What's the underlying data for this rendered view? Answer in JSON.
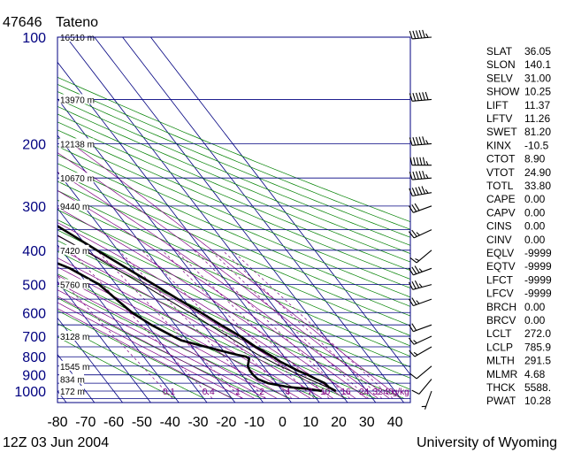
{
  "station": {
    "id": "47646",
    "name": "Tateno"
  },
  "footer": {
    "time": "12Z 03 Jun 2004",
    "source": "University of Wyoming"
  },
  "colors": {
    "isobar": "#000080",
    "dry_adiabat": "#008000",
    "moist_adiabat": "#800080",
    "mixing_ratio": "#800080",
    "isotherm": "#000080",
    "profile": "#000000"
  },
  "chart_data": {
    "type": "line",
    "title": "",
    "x_axis": {
      "range": [
        -80,
        45
      ],
      "ticks": [
        -80,
        -70,
        -60,
        -50,
        -40,
        -30,
        -20,
        -10,
        0,
        10,
        20,
        30,
        40
      ]
    },
    "y_axis": {
      "scale": "log",
      "range": [
        1050,
        100
      ],
      "ticks": [
        100,
        200,
        300,
        400,
        500,
        600,
        700,
        800,
        900,
        1000
      ]
    },
    "height_labels": [
      {
        "p": 100,
        "text": "16510 m"
      },
      {
        "p": 150,
        "text": "13970 m"
      },
      {
        "p": 200,
        "text": "12138 m"
      },
      {
        "p": 250,
        "text": "10670 m"
      },
      {
        "p": 300,
        "text": "9440 m"
      },
      {
        "p": 400,
        "text": "7420 m"
      },
      {
        "p": 500,
        "text": "5760 m"
      },
      {
        "p": 700,
        "text": "3128 m"
      },
      {
        "p": 850,
        "text": "1545 m"
      },
      {
        "p": 925,
        "text": "834 m"
      },
      {
        "p": 1000,
        "text": "172 m"
      }
    ],
    "mixing_ratio_labels": [
      "0.1",
      "0.4",
      "1",
      "2",
      "4",
      "7",
      "10",
      "16",
      "24",
      "32",
      "40",
      "g/kg"
    ],
    "series": [
      {
        "name": "",
        "role": "temperature",
        "points": [
          {
            "p": 1000,
            "t": 19.0
          },
          {
            "p": 975,
            "t": 17.5
          },
          {
            "p": 950,
            "t": 17.2
          },
          {
            "p": 925,
            "t": 15.2
          },
          {
            "p": 900,
            "t": 13.5
          },
          {
            "p": 875,
            "t": 11.0
          },
          {
            "p": 850,
            "t": 9.2
          },
          {
            "p": 825,
            "t": 7.2
          },
          {
            "p": 800,
            "t": 6.0
          },
          {
            "p": 750,
            "t": 2.5
          },
          {
            "p": 700,
            "t": 0.0
          },
          {
            "p": 650,
            "t": -3.8
          },
          {
            "p": 600,
            "t": -7.5
          },
          {
            "p": 550,
            "t": -12.0
          },
          {
            "p": 500,
            "t": -16.5
          },
          {
            "p": 400,
            "t": -27.5
          },
          {
            "p": 300,
            "t": -41.0
          },
          {
            "p": 250,
            "t": -49.5
          },
          {
            "p": 200,
            "t": -56.5
          },
          {
            "p": 190,
            "t": -55.0
          },
          {
            "p": 175,
            "t": -53.5
          },
          {
            "p": 150,
            "t": -55.5
          },
          {
            "p": 130,
            "t": -55.0
          },
          {
            "p": 120,
            "t": -58.0
          },
          {
            "p": 100,
            "t": -60.0
          }
        ]
      },
      {
        "name": "",
        "role": "dewpoint",
        "points": [
          {
            "p": 1000,
            "t": 14.0
          },
          {
            "p": 985,
            "t": 9.5
          },
          {
            "p": 975,
            "t": 3.5
          },
          {
            "p": 950,
            "t": -3.0
          },
          {
            "p": 925,
            "t": -5.5
          },
          {
            "p": 900,
            "t": -6.0
          },
          {
            "p": 875,
            "t": -6.0
          },
          {
            "p": 850,
            "t": -5.5
          },
          {
            "p": 810,
            "t": -3.0
          },
          {
            "p": 800,
            "t": -3.5
          },
          {
            "p": 790,
            "t": -6.0
          },
          {
            "p": 760,
            "t": -13.0
          },
          {
            "p": 720,
            "t": -22.0
          },
          {
            "p": 700,
            "t": -24.0
          },
          {
            "p": 650,
            "t": -28.5
          },
          {
            "p": 600,
            "t": -32.0
          },
          {
            "p": 550,
            "t": -34.0
          },
          {
            "p": 500,
            "t": -36.0
          },
          {
            "p": 450,
            "t": -42.0
          },
          {
            "p": 400,
            "t": -53.0
          },
          {
            "p": 350,
            "t": -58.0
          },
          {
            "p": 300,
            "t": -66.0
          }
        ]
      },
      {
        "name": "",
        "role": "parcel",
        "points": [
          {
            "p": 1000,
            "t": 19.0
          },
          {
            "p": 900,
            "t": 10.5
          },
          {
            "p": 850,
            "t": 6.0
          },
          {
            "p": 786,
            "t": 1.0
          },
          {
            "p": 700,
            "t": -4.5
          },
          {
            "p": 600,
            "t": -11.5
          },
          {
            "p": 500,
            "t": -20.5
          },
          {
            "p": 400,
            "t": -32.0
          },
          {
            "p": 300,
            "t": -48.0
          },
          {
            "p": 250,
            "t": -58.0
          },
          {
            "p": 200,
            "t": -70.0
          }
        ]
      }
    ],
    "wind_barbs": [
      {
        "p": 100,
        "dir": 265,
        "kt": 55
      },
      {
        "p": 150,
        "dir": 265,
        "kt": 60
      },
      {
        "p": 200,
        "dir": 265,
        "kt": 55
      },
      {
        "p": 230,
        "dir": 270,
        "kt": 55
      },
      {
        "p": 250,
        "dir": 265,
        "kt": 55
      },
      {
        "p": 275,
        "dir": 260,
        "kt": 55
      },
      {
        "p": 300,
        "dir": 250,
        "kt": 30
      },
      {
        "p": 350,
        "dir": 245,
        "kt": 25
      },
      {
        "p": 400,
        "dir": 230,
        "kt": 15
      },
      {
        "p": 450,
        "dir": 250,
        "kt": 35
      },
      {
        "p": 500,
        "dir": 255,
        "kt": 35
      },
      {
        "p": 550,
        "dir": 250,
        "kt": 25
      },
      {
        "p": 650,
        "dir": 250,
        "kt": 20
      },
      {
        "p": 700,
        "dir": 245,
        "kt": 15
      },
      {
        "p": 750,
        "dir": 240,
        "kt": 15
      },
      {
        "p": 850,
        "dir": 230,
        "kt": 10
      },
      {
        "p": 925,
        "dir": 220,
        "kt": 10
      },
      {
        "p": 1000,
        "dir": 200,
        "kt": 5
      }
    ]
  },
  "indices": [
    {
      "label": "SLAT",
      "value": "36.05"
    },
    {
      "label": "SLON",
      "value": "140.1"
    },
    {
      "label": "SELV",
      "value": "31.00"
    },
    {
      "label": "SHOW",
      "value": "10.25"
    },
    {
      "label": "LIFT",
      "value": "11.37"
    },
    {
      "label": "LFTV",
      "value": "11.26"
    },
    {
      "label": "SWET",
      "value": "81.20"
    },
    {
      "label": "KINX",
      "value": "-10.5"
    },
    {
      "label": "CTOT",
      "value": "8.90"
    },
    {
      "label": "VTOT",
      "value": "24.90"
    },
    {
      "label": "TOTL",
      "value": "33.80"
    },
    {
      "label": "CAPE",
      "value": "0.00"
    },
    {
      "label": "CAPV",
      "value": "0.00"
    },
    {
      "label": "CINS",
      "value": "0.00"
    },
    {
      "label": "CINV",
      "value": "0.00"
    },
    {
      "label": "EQLV",
      "value": "-9999"
    },
    {
      "label": "EQTV",
      "value": "-9999"
    },
    {
      "label": "LFCT",
      "value": "-9999"
    },
    {
      "label": "LFCV",
      "value": "-9999"
    },
    {
      "label": "BRCH",
      "value": "0.00"
    },
    {
      "label": "BRCV",
      "value": "0.00"
    },
    {
      "label": "LCLT",
      "value": "272.0"
    },
    {
      "label": "LCLP",
      "value": "785.9"
    },
    {
      "label": "MLTH",
      "value": "291.5"
    },
    {
      "label": "MLMR",
      "value": "4.68"
    },
    {
      "label": "THCK",
      "value": "5588."
    },
    {
      "label": "PWAT",
      "value": "10.28"
    }
  ]
}
